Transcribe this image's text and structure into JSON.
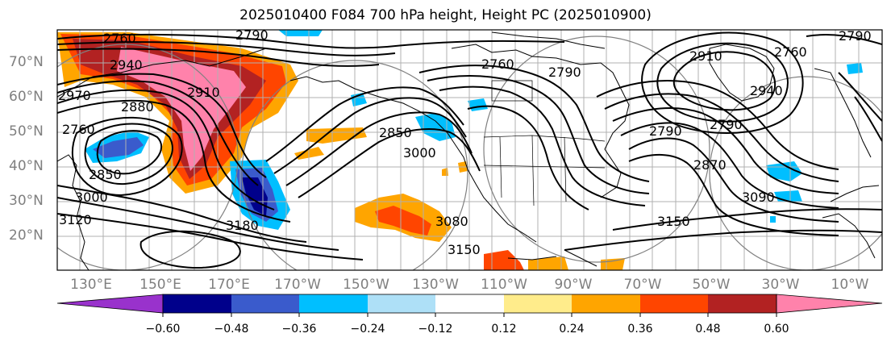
{
  "title": "2025010400 F084 700 hPa height, Height PC (2025010900)",
  "latitude_labels": [
    "70°N",
    "60°N",
    "50°N",
    "40°N",
    "30°N",
    "20°N"
  ],
  "longitude_labels": [
    "130°E",
    "150°E",
    "170°E",
    "170°W",
    "150°W",
    "130°W",
    "110°W",
    "90°W",
    "70°W",
    "50°W",
    "30°W",
    "10°W"
  ],
  "colorbar": {
    "tick_labels": [
      "−0.60",
      "−0.48",
      "−0.36",
      "−0.24",
      "−0.12",
      "0.12",
      "0.24",
      "0.36",
      "0.48",
      "0.60"
    ],
    "bin_colors": [
      "#9932cc",
      "#00008b",
      "#3a5bcc",
      "#00bfff",
      "#aee0f7",
      "#ffffff",
      "#ffec8b",
      "#ffa500",
      "#ff4500",
      "#b22222",
      "#ff82ab"
    ]
  },
  "contour_labels": [
    "2760",
    "2790",
    "2940",
    "2970",
    "2880",
    "2910",
    "2760",
    "2850",
    "3000",
    "3120",
    "2760",
    "2790",
    "2850",
    "3000",
    "3080",
    "3150",
    "2940",
    "2790",
    "2790",
    "2870",
    "3090",
    "3150",
    "2910",
    "2790",
    "2760",
    "3180"
  ],
  "contour_color": "#000000",
  "coastline_color": "#000000",
  "grid_color": "#b0b0b0"
}
